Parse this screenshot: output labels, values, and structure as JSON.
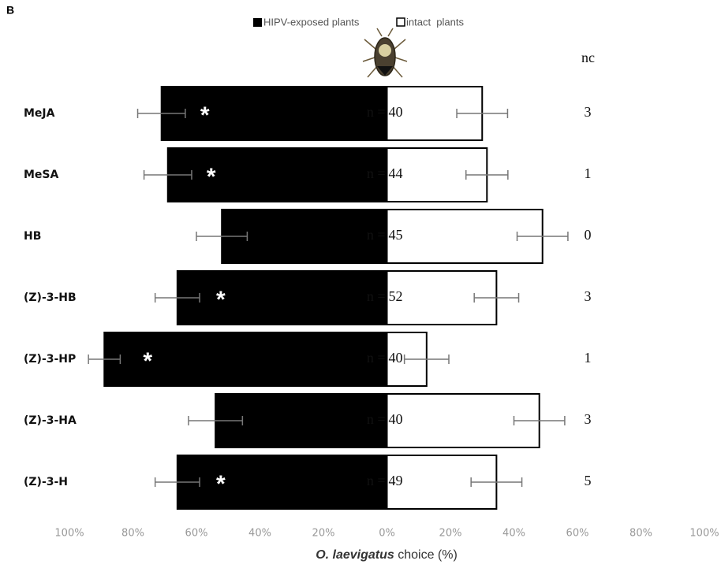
{
  "chart_data": {
    "type": "diverging_bar",
    "panel_label": "B",
    "categories": [
      "MeJA",
      "MeSA",
      "HB",
      "(Z)-3-HB",
      "(Z)-3-HP",
      "(Z)-3-HA",
      "(Z)-3-H"
    ],
    "series": [
      {
        "name": "HIPV-exposed plants",
        "color": "#000000",
        "values": [
          -71,
          -69,
          -52,
          -66,
          -89,
          -54,
          -66
        ],
        "errors": [
          7.5,
          7.5,
          8,
          7,
          5,
          8.5,
          7
        ],
        "significance": [
          "*",
          "*",
          null,
          "*",
          "*",
          null,
          "*"
        ]
      },
      {
        "name": "intact  plants",
        "color": "#ffffff",
        "values": [
          30,
          31.5,
          49,
          34.5,
          12.5,
          48,
          34.5
        ],
        "errors": [
          8,
          6.6,
          8,
          7,
          7,
          8,
          8
        ]
      }
    ],
    "n_label": "n =",
    "n": [
      40,
      44,
      45,
      52,
      40,
      40,
      49
    ],
    "nc_label": "nc",
    "nc": [
      3,
      1,
      0,
      3,
      1,
      3,
      5
    ],
    "xlim": [
      -100,
      100
    ],
    "xticks": [
      {
        "value": -100,
        "label": "100%"
      },
      {
        "value": -80,
        "label": "80%"
      },
      {
        "value": -60,
        "label": "60%"
      },
      {
        "value": -40,
        "label": "40%"
      },
      {
        "value": -20,
        "label": "20%"
      },
      {
        "value": 0,
        "label": "0%"
      },
      {
        "value": 20,
        "label": "20%"
      },
      {
        "value": 40,
        "label": "40%"
      },
      {
        "value": 60,
        "label": "60%"
      },
      {
        "value": 80,
        "label": "80%"
      },
      {
        "value": 100,
        "label": "100%"
      }
    ],
    "xlabel": {
      "species": "O. laevigatus",
      "text": "choice (%)"
    }
  }
}
